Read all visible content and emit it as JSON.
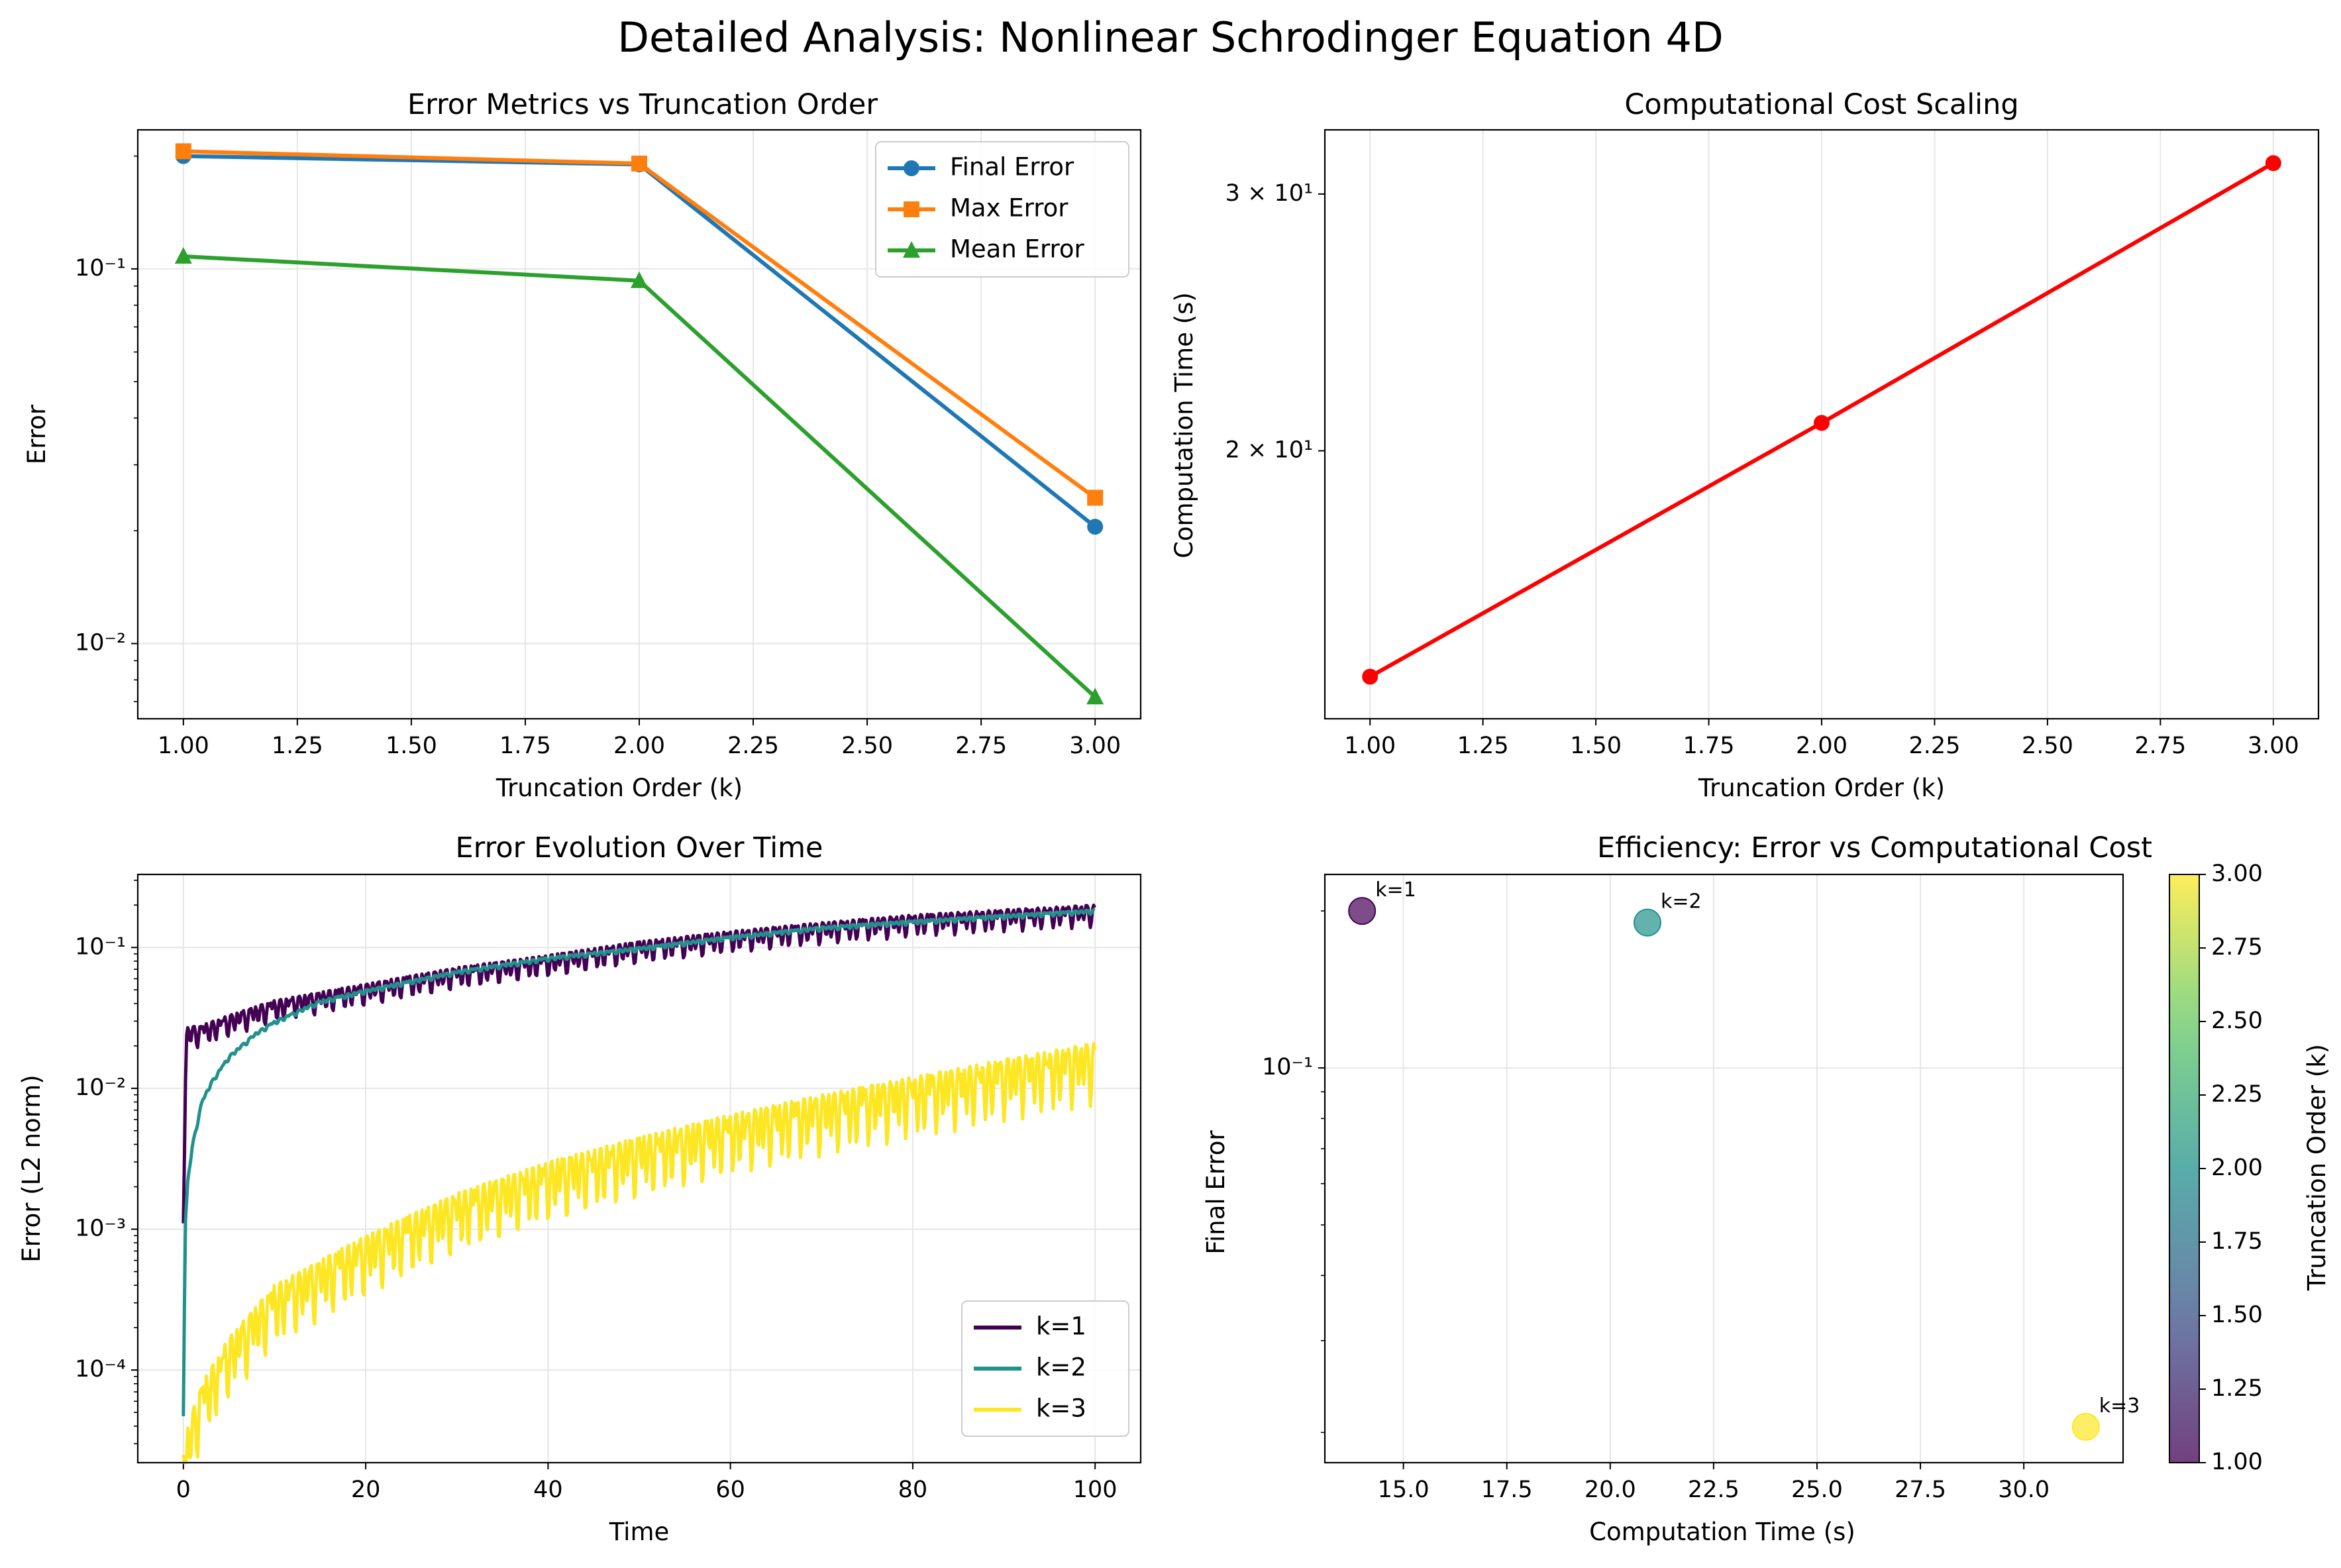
{
  "figure": {
    "suptitle": "Detailed Analysis: Nonlinear Schrodinger Equation 4D"
  },
  "colors": {
    "final_error": "#1f77b4",
    "max_error": "#ff7f0e",
    "mean_error": "#2ca02c",
    "cost_line": "#ff0000",
    "viridis_k1": "#440154",
    "viridis_k2": "#21918c",
    "viridis_k3": "#fde725",
    "grid": "#e6e6e6"
  },
  "chart_data": [
    {
      "type": "line",
      "title": "Error Metrics vs Truncation Order",
      "xlabel": "Truncation Order (k)",
      "ylabel": "Error",
      "yscale": "log",
      "xlim": [
        0.9,
        3.1
      ],
      "ylim": [
        0.0063,
        0.235
      ],
      "grid": true,
      "legend_position": "upper right",
      "x": [
        1,
        2,
        3
      ],
      "x_ticks": [
        "1.00",
        "1.25",
        "1.50",
        "1.75",
        "2.00",
        "2.25",
        "2.50",
        "2.75",
        "3.00"
      ],
      "y_ticks": [
        "10⁻²",
        "10⁻¹"
      ],
      "series": [
        {
          "name": "Final Error",
          "marker": "circle",
          "values": [
            0.2,
            0.19,
            0.0205
          ]
        },
        {
          "name": "Max Error",
          "marker": "square",
          "values": [
            0.206,
            0.191,
            0.0245
          ]
        },
        {
          "name": "Mean Error",
          "marker": "triangle",
          "values": [
            0.108,
            0.093,
            0.0072
          ]
        }
      ]
    },
    {
      "type": "line",
      "title": "Computational Cost Scaling",
      "xlabel": "Truncation Order (k)",
      "ylabel": "Computation Time (s)",
      "yscale": "log",
      "xlim": [
        0.9,
        3.1
      ],
      "ylim": [
        13.1,
        33.2
      ],
      "grid": true,
      "x": [
        1,
        2,
        3
      ],
      "x_ticks": [
        "1.00",
        "1.25",
        "1.50",
        "1.75",
        "2.00",
        "2.25",
        "2.50",
        "2.75",
        "3.00"
      ],
      "y_ticks": [
        "2 × 10¹",
        "3 × 10¹"
      ],
      "series": [
        {
          "name": "",
          "marker": "circle",
          "values": [
            14.0,
            20.9,
            31.5
          ]
        }
      ]
    },
    {
      "type": "line",
      "title": "Error Evolution Over Time",
      "xlabel": "Time",
      "ylabel": "Error (L2 norm)",
      "yscale": "log",
      "xlim": [
        -5,
        105
      ],
      "ylim": [
        2.2e-05,
        0.33
      ],
      "grid": true,
      "legend_position": "lower right",
      "x_ticks": [
        "0",
        "20",
        "40",
        "60",
        "80",
        "100"
      ],
      "y_ticks": [
        "10⁻⁴",
        "10⁻³",
        "10⁻²",
        "10⁻¹"
      ],
      "series": [
        {
          "name": "k=1",
          "x": [
            0,
            0.3,
            2,
            5,
            10,
            20,
            30,
            40,
            50,
            60,
            70,
            80,
            90,
            100
          ],
          "values": [
            0.0011,
            0.027,
            0.028,
            0.033,
            0.042,
            0.055,
            0.072,
            0.088,
            0.11,
            0.13,
            0.15,
            0.17,
            0.185,
            0.2
          ]
        },
        {
          "name": "k=2",
          "x": [
            0,
            0.2,
            0.5,
            1,
            2,
            3,
            5,
            8,
            10,
            15,
            20,
            30,
            40,
            50,
            60,
            70,
            80,
            90,
            100
          ],
          "values": [
            4.7e-05,
            0.0011,
            0.0023,
            0.004,
            0.008,
            0.011,
            0.017,
            0.025,
            0.03,
            0.042,
            0.05,
            0.068,
            0.085,
            0.1,
            0.12,
            0.14,
            0.155,
            0.17,
            0.185
          ]
        },
        {
          "name": "k=3",
          "x": [
            0,
            0.5,
            2,
            5,
            10,
            20,
            30,
            40,
            50,
            60,
            70,
            80,
            90,
            100
          ],
          "values": [
            2.5e-05,
            4e-05,
            8e-05,
            0.00017,
            0.0004,
            0.0009,
            0.0018,
            0.003,
            0.0045,
            0.0065,
            0.009,
            0.012,
            0.016,
            0.021
          ]
        }
      ]
    },
    {
      "type": "scatter",
      "title": "Efficiency: Error vs Computational Cost",
      "xlabel": "Computation Time (s)",
      "ylabel": "Final Error",
      "yscale": "log",
      "xlim": [
        13.1,
        32.4
      ],
      "ylim": [
        0.0175,
        0.235
      ],
      "grid": true,
      "x_ticks": [
        "15.0",
        "17.5",
        "20.0",
        "22.5",
        "25.0",
        "27.5",
        "30.0"
      ],
      "y_ticks": [
        "10⁻¹"
      ],
      "colorbar": {
        "label": "Truncation Order (k)",
        "range": [
          1.0,
          3.0
        ],
        "ticks": [
          "1.00",
          "1.25",
          "1.50",
          "1.75",
          "2.00",
          "2.25",
          "2.50",
          "2.75",
          "3.00"
        ],
        "colormap": "viridis"
      },
      "points": [
        {
          "x": 14.0,
          "y": 0.2,
          "k": 1,
          "label": "k=1"
        },
        {
          "x": 20.9,
          "y": 0.19,
          "k": 2,
          "label": "k=2"
        },
        {
          "x": 31.5,
          "y": 0.0205,
          "k": 3,
          "label": "k=3"
        }
      ]
    }
  ]
}
